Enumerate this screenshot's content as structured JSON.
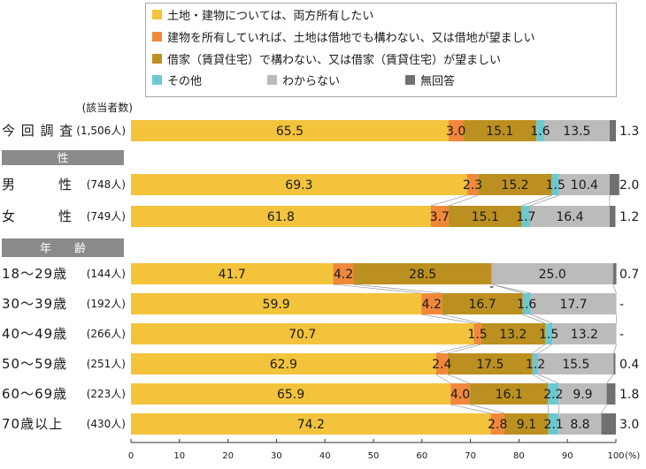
{
  "chart_data": {
    "type": "bar",
    "orientation": "horizontal-stacked-100",
    "count_header": "(該当者数)",
    "legend": [
      {
        "key": "both",
        "label": "土地・建物については、両方所有したい",
        "color": "#F3C33C"
      },
      {
        "key": "building_only",
        "label": "建物を所有していれば、土地は借地でも構わない、又は借地が望ましい",
        "color": "#F0883C"
      },
      {
        "key": "rent",
        "label": "借家（賃貸住宅）で構わない、又は借家（賃貸住宅）が望ましい",
        "color": "#BC9020"
      },
      {
        "key": "other",
        "label": "その他",
        "color": "#6CC8D0"
      },
      {
        "key": "dont_know",
        "label": "わからない",
        "color": "#BBBBBB"
      },
      {
        "key": "no_answer",
        "label": "無回答",
        "color": "#707070"
      }
    ],
    "groups": [
      {
        "header": null,
        "rows": [
          {
            "label": "今 回 調 査",
            "count": "(1,506人)",
            "values": [
              65.5,
              3.0,
              15.1,
              1.6,
              13.5,
              1.3
            ],
            "display": [
              "65.5",
              "3.0",
              "15.1",
              "1.6",
              "13.5",
              "1.3"
            ]
          }
        ]
      },
      {
        "header": "性",
        "rows": [
          {
            "label": "男　　　性",
            "count": "(748人)",
            "values": [
              69.3,
              2.3,
              15.2,
              1.5,
              10.4,
              2.0
            ],
            "display": [
              "69.3",
              "2.3",
              "15.2",
              "1.5",
              "10.4",
              "2.0"
            ]
          },
          {
            "label": "女　　　性",
            "count": "(749人)",
            "values": [
              61.8,
              3.7,
              15.1,
              1.7,
              16.4,
              1.2
            ],
            "display": [
              "61.8",
              "3.7",
              "15.1",
              "1.7",
              "16.4",
              "1.2"
            ]
          }
        ]
      },
      {
        "header": "年　　齢",
        "rows": [
          {
            "label": "18～29歳",
            "count": "(144人)",
            "values": [
              41.7,
              4.2,
              28.5,
              0,
              25.0,
              0.7
            ],
            "display": [
              "41.7",
              "4.2",
              "28.5",
              "-",
              "25.0",
              "0.7"
            ]
          },
          {
            "label": "30～39歳",
            "count": "(192人)",
            "values": [
              59.9,
              4.2,
              16.7,
              1.6,
              17.7,
              0
            ],
            "display": [
              "59.9",
              "4.2",
              "16.7",
              "1.6",
              "17.7",
              "-"
            ]
          },
          {
            "label": "40～49歳",
            "count": "(266人)",
            "values": [
              70.7,
              1.5,
              13.2,
              1.5,
              13.2,
              0
            ],
            "display": [
              "70.7",
              "1.5",
              "13.2",
              "1.5",
              "13.2",
              "-"
            ]
          },
          {
            "label": "50～59歳",
            "count": "(251人)",
            "values": [
              62.9,
              2.4,
              17.5,
              1.2,
              15.5,
              0.4
            ],
            "display": [
              "62.9",
              "2.4",
              "17.5",
              "1.2",
              "15.5",
              "0.4"
            ]
          },
          {
            "label": "60～69歳",
            "count": "(223人)",
            "values": [
              65.9,
              4.0,
              16.1,
              2.2,
              9.9,
              1.8
            ],
            "display": [
              "65.9",
              "4.0",
              "16.1",
              "2.2",
              "9.9",
              "1.8"
            ]
          },
          {
            "label": "70歳以上",
            "count": "(430人)",
            "values": [
              74.2,
              2.8,
              9.1,
              2.1,
              8.8,
              3.0
            ],
            "display": [
              "74.2",
              "2.8",
              "9.1",
              "2.1",
              "8.8",
              "3.0"
            ]
          }
        ]
      }
    ],
    "x_axis": {
      "ticks": [
        0,
        10,
        20,
        30,
        40,
        50,
        60,
        70,
        80,
        90,
        100
      ],
      "unit": "(%)",
      "range": [
        0,
        100
      ]
    },
    "grid": false,
    "legend_position": "top"
  }
}
